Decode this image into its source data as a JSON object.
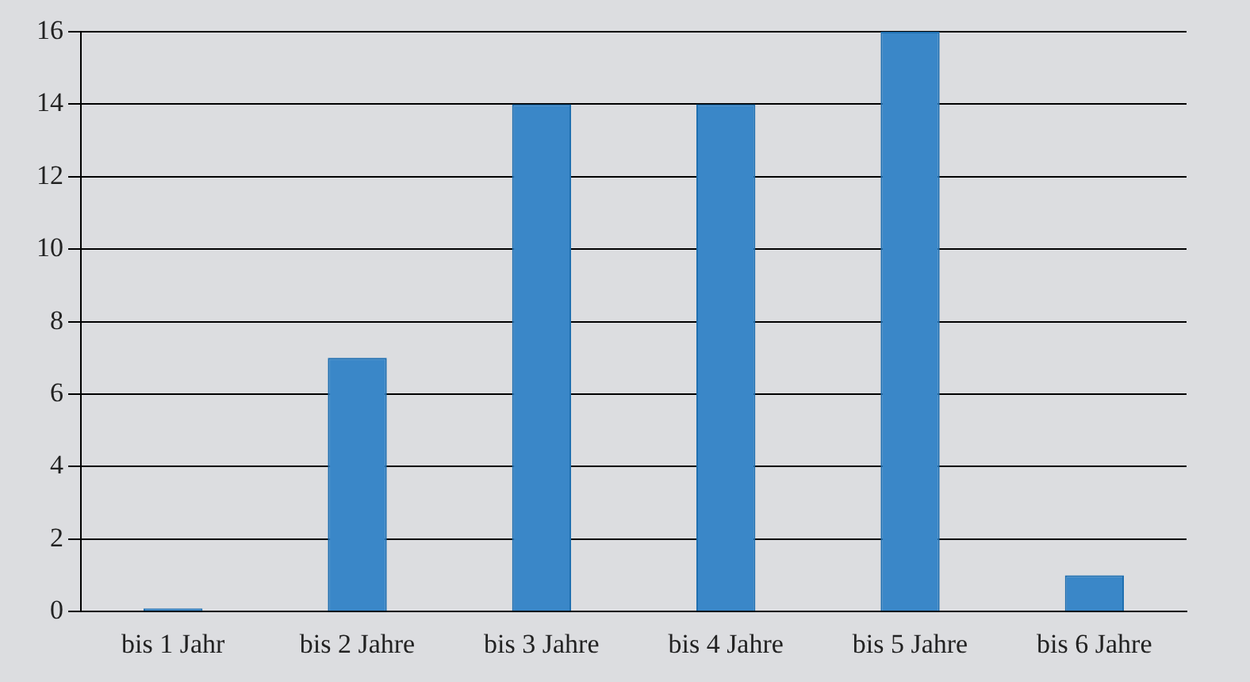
{
  "chart_data": {
    "type": "bar",
    "categories": [
      "bis 1 Jahr",
      "bis 2 Jahre",
      "bis 3 Jahre",
      "bis 4 Jahre",
      "bis 5 Jahre",
      "bis 6 Jahre"
    ],
    "values": [
      0,
      7,
      14,
      14,
      16,
      1
    ],
    "color": "#3a87c8",
    "ylim": [
      0,
      16
    ],
    "yticks": [
      0,
      2,
      4,
      6,
      8,
      10,
      12,
      14,
      16
    ],
    "grid": "y"
  }
}
